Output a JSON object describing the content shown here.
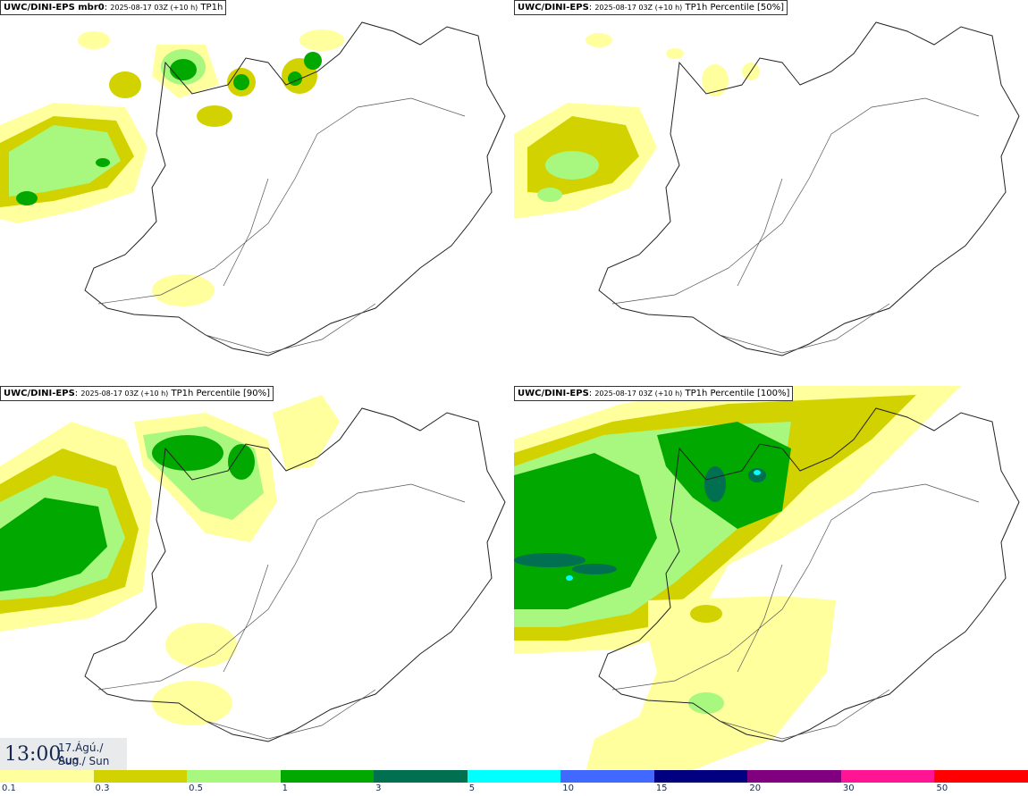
{
  "panels": [
    {
      "model": "UWC/DINI-EPS mbr0",
      "run": "2025-08-17 03Z (+10 h)",
      "product": "TP1h"
    },
    {
      "model": "UWC/DINI-EPS",
      "run": "2025-08-17 03Z (+10 h)",
      "product": "TP1h Percentile [50%]"
    },
    {
      "model": "UWC/DINI-EPS",
      "run": "2025-08-17 03Z (+10 h)",
      "product": "TP1h Percentile [90%]"
    },
    {
      "model": "UWC/DINI-EPS",
      "run": "2025-08-17 03Z (+10 h)",
      "product": "TP1h Percentile [100%]"
    }
  ],
  "valid_time": {
    "time": "13:00",
    "date": "17.Ágú./ Aug",
    "day": "Sun./ Sun"
  },
  "legend": {
    "colors": [
      "#ffff9e",
      "#d2d200",
      "#a8f77f",
      "#00a800",
      "#007050",
      "#00ffff",
      "#4169ff",
      "#000080",
      "#800080",
      "#ff1493",
      "#ff0000"
    ],
    "ticks": [
      "0.1",
      "0.3",
      "0.5",
      "1",
      "3",
      "5",
      "10",
      "15",
      "20",
      "30",
      "50"
    ]
  }
}
